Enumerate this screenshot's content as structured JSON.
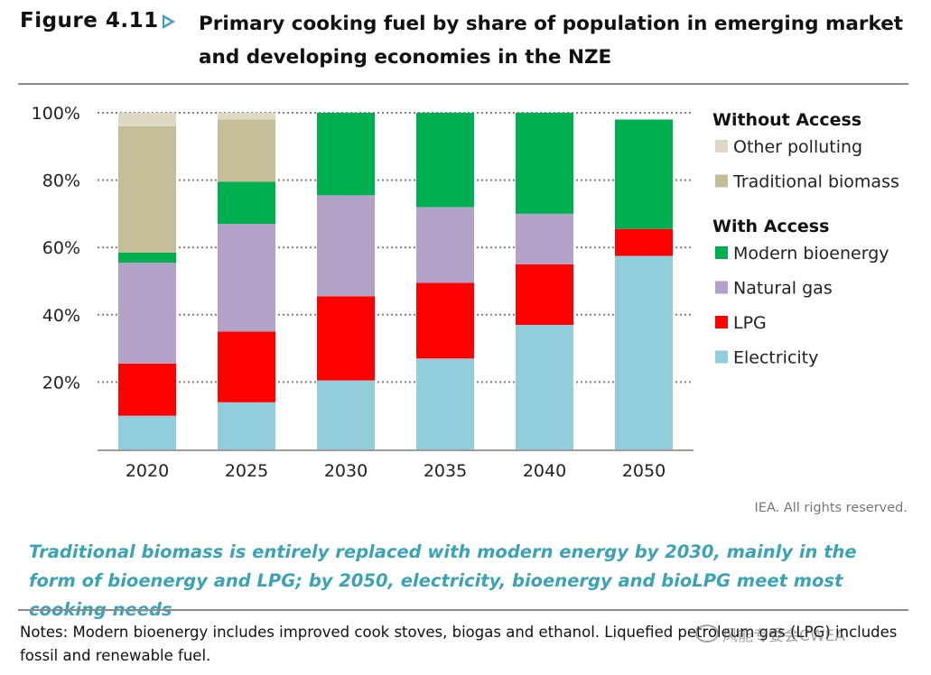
{
  "figure": {
    "label": "Figure 4.11",
    "title": "Primary cooking fuel by share of population in emerging market and developing economies in the NZE"
  },
  "chart_data": {
    "type": "bar",
    "stacked": true,
    "categories": [
      "2020",
      "2025",
      "2030",
      "2035",
      "2040",
      "2050"
    ],
    "ylim": [
      0,
      100
    ],
    "yticks": [
      "20%",
      "40%",
      "60%",
      "80%",
      "100%"
    ],
    "ytick_values": [
      20,
      40,
      60,
      80,
      100
    ],
    "grid": "dotted horizontal",
    "series": [
      {
        "name": "Electricity",
        "group": "With Access",
        "color": "#92cddc",
        "values": [
          10,
          14,
          20.5,
          27,
          37,
          57.5
        ]
      },
      {
        "name": "LPG",
        "group": "With Access",
        "color": "#ff0000",
        "values": [
          15.5,
          21,
          25,
          22.5,
          18,
          8
        ]
      },
      {
        "name": "Natural gas",
        "group": "With Access",
        "color": "#b3a2c7",
        "values": [
          30,
          32,
          30,
          22.5,
          15,
          0
        ]
      },
      {
        "name": "Modern bioenergy",
        "group": "With Access",
        "color": "#00b050",
        "values": [
          3,
          12.5,
          24.5,
          28,
          30,
          32.5
        ]
      },
      {
        "name": "Traditional biomass",
        "group": "Without Access",
        "color": "#c4bd97",
        "values": [
          37.5,
          18.5,
          0,
          0,
          0,
          0
        ]
      },
      {
        "name": "Other polluting",
        "group": "Without Access",
        "color": "#ddd9c4",
        "values": [
          4,
          2,
          0,
          0,
          0,
          0
        ]
      }
    ],
    "legend": {
      "groups": [
        {
          "header": "Without Access",
          "items": [
            "Other polluting",
            "Traditional biomass"
          ]
        },
        {
          "header": "With Access",
          "items": [
            "Modern bioenergy",
            "Natural gas",
            "LPG",
            "Electricity"
          ]
        }
      ],
      "placement": "right"
    }
  },
  "footer": {
    "copyright": "IEA. All rights reserved.",
    "caption": "Traditional biomass is entirely replaced with modern energy by 2030, mainly in the form of bioenergy and LPG; by 2050, electricity, bioenergy and bioLPG meet most cooking needs",
    "notes": "Notes: Modern bioenergy includes improved cook stoves, biogas and ethanol. Liquefied petroleum gas (LPG) includes fossil and renewable fuel.",
    "watermark": "风能专委会CWEA"
  }
}
